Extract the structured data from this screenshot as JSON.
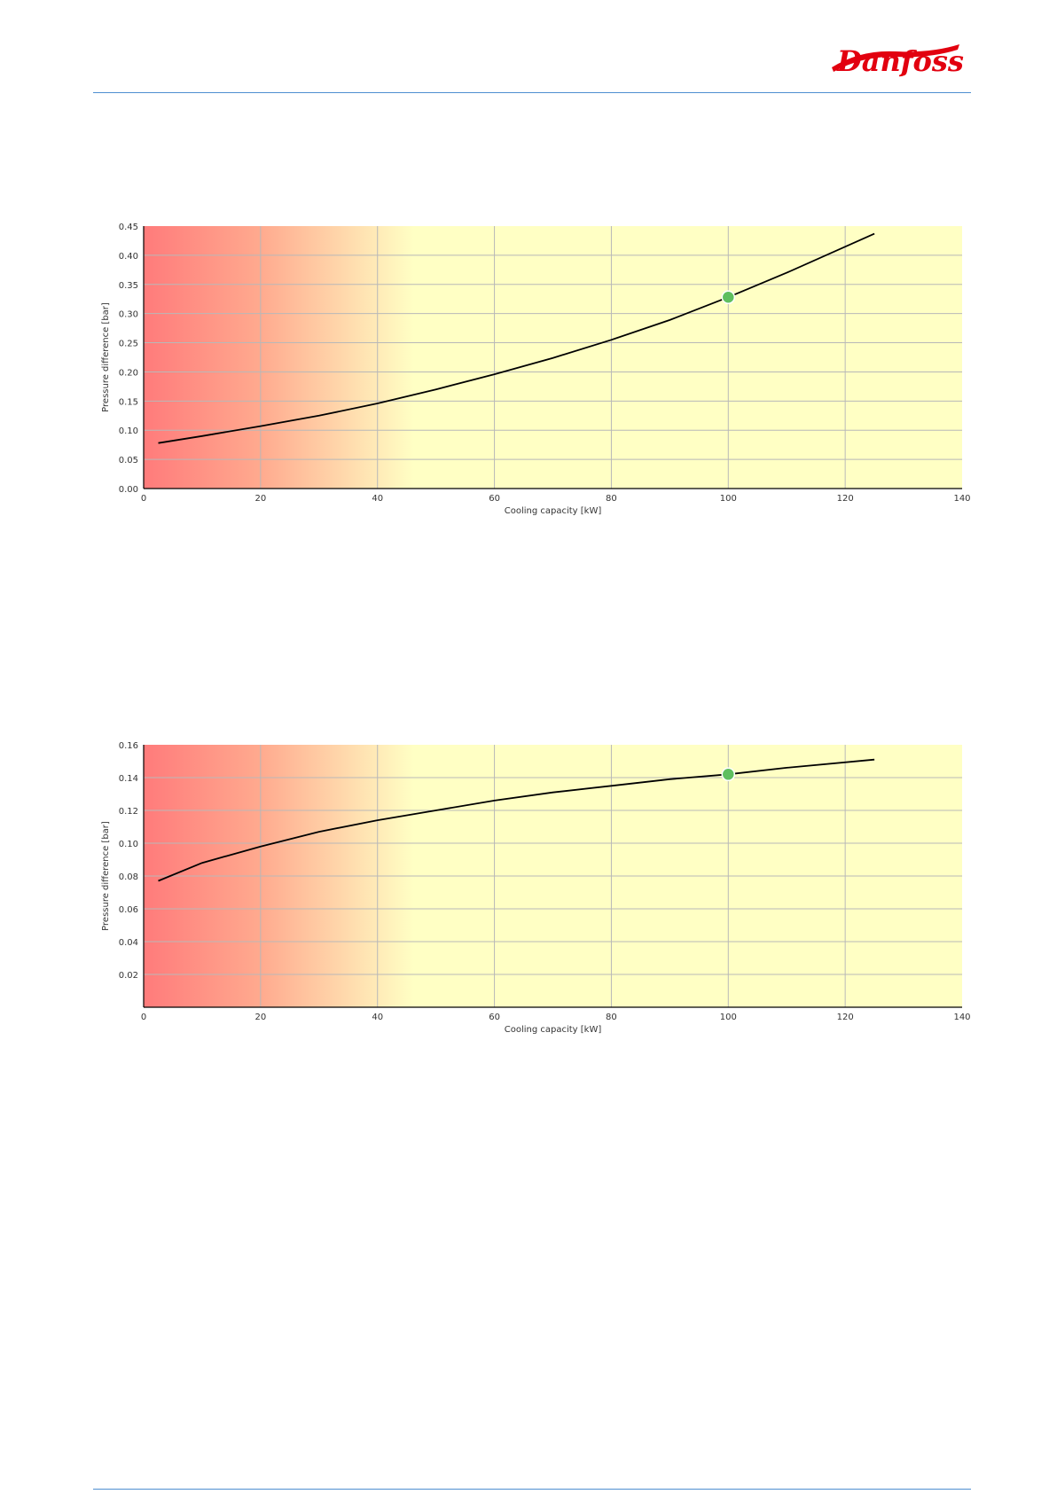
{
  "logo": {
    "text": "Danfoss",
    "color": "#e2000f"
  },
  "colors": {
    "rule": "#4f8fd0",
    "curve": "#000000",
    "point": "#5fbf5f",
    "zone_red": "#ff7b7b",
    "zone_yellow": "#ffffc4",
    "grid": "#b8b8b8"
  },
  "chart_data": [
    {
      "type": "line",
      "xlabel": "Cooling capacity [kW]",
      "ylabel": "Pressure difference [bar]",
      "xlim": [
        0,
        140
      ],
      "ylim": [
        0,
        0.45
      ],
      "xticks": [
        "0",
        "20",
        "40",
        "60",
        "80",
        "100",
        "120",
        "140"
      ],
      "yticks": [
        "0.00",
        "0.05",
        "0.10",
        "0.15",
        "0.20",
        "0.25",
        "0.30",
        "0.35",
        "0.40",
        "0.45"
      ],
      "grid": true,
      "series": [
        {
          "x": [
            2.5,
            10,
            20,
            30,
            40,
            50,
            60,
            70,
            80,
            90,
            100,
            110,
            125
          ],
          "y": [
            0.078,
            0.09,
            0.107,
            0.125,
            0.146,
            0.17,
            0.196,
            0.224,
            0.255,
            0.289,
            0.328,
            0.37,
            0.437
          ]
        }
      ],
      "highlight_point": {
        "x": 100,
        "y": 0.328
      }
    },
    {
      "type": "line",
      "xlabel": "Cooling capacity [kW]",
      "ylabel": "Pressure difference [bar]",
      "xlim": [
        0,
        140
      ],
      "ylim": [
        0,
        0.16
      ],
      "xticks": [
        "0",
        "20",
        "40",
        "60",
        "80",
        "100",
        "120",
        "140"
      ],
      "yticks": [
        "0.02",
        "0.04",
        "0.06",
        "0.08",
        "0.10",
        "0.12",
        "0.14",
        "0.16"
      ],
      "grid": true,
      "series": [
        {
          "x": [
            2.5,
            10,
            20,
            30,
            40,
            50,
            60,
            70,
            80,
            90,
            100,
            110,
            125
          ],
          "y": [
            0.077,
            0.088,
            0.098,
            0.107,
            0.114,
            0.12,
            0.126,
            0.131,
            0.135,
            0.139,
            0.142,
            0.146,
            0.151
          ]
        }
      ],
      "highlight_point": {
        "x": 100,
        "y": 0.142
      }
    }
  ]
}
